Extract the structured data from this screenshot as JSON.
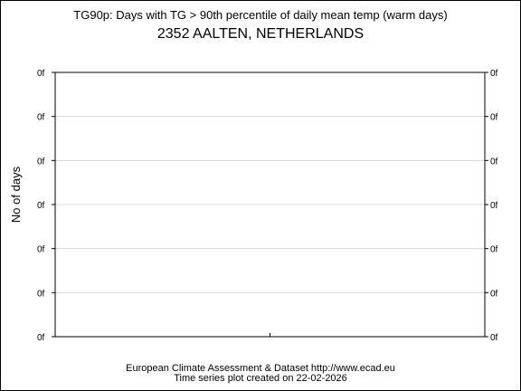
{
  "chart_data": {
    "type": "line",
    "title": "TG90p: Days with TG > 90th percentile of daily mean temp (warm days)",
    "subtitle": "2352 AALTEN, NETHERLANDS",
    "xlabel": "",
    "ylabel": "No of days",
    "y_tick_labels": [
      "0f",
      "0f",
      "0f",
      "0f",
      "0f",
      "0f",
      "0f"
    ],
    "x_tick_count": 1,
    "grid": true,
    "series": []
  },
  "footer": {
    "line1": "European Climate Assessment & Dataset  http://www.ecad.eu",
    "line2": "Time series plot created on 22-02-2026"
  },
  "colors": {
    "axis": "#000000",
    "grid": "#d8d8d8"
  }
}
